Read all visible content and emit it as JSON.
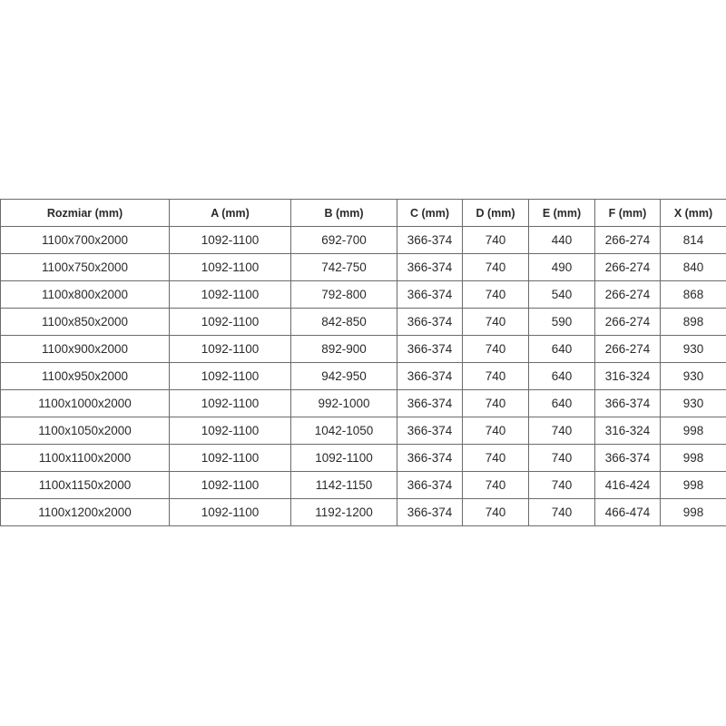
{
  "table": {
    "headers": [
      "Rozmiar (mm)",
      "A (mm)",
      "B (mm)",
      "C (mm)",
      "D (mm)",
      "E (mm)",
      "F (mm)",
      "X (mm)"
    ],
    "rows": [
      [
        "1100x700x2000",
        "1092-1100",
        "692-700",
        "366-374",
        "740",
        "440",
        "266-274",
        "814"
      ],
      [
        "1100x750x2000",
        "1092-1100",
        "742-750",
        "366-374",
        "740",
        "490",
        "266-274",
        "840"
      ],
      [
        "1100x800x2000",
        "1092-1100",
        "792-800",
        "366-374",
        "740",
        "540",
        "266-274",
        "868"
      ],
      [
        "1100x850x2000",
        "1092-1100",
        "842-850",
        "366-374",
        "740",
        "590",
        "266-274",
        "898"
      ],
      [
        "1100x900x2000",
        "1092-1100",
        "892-900",
        "366-374",
        "740",
        "640",
        "266-274",
        "930"
      ],
      [
        "1100x950x2000",
        "1092-1100",
        "942-950",
        "366-374",
        "740",
        "640",
        "316-324",
        "930"
      ],
      [
        "1100x1000x2000",
        "1092-1100",
        "992-1000",
        "366-374",
        "740",
        "640",
        "366-374",
        "930"
      ],
      [
        "1100x1050x2000",
        "1092-1100",
        "1042-1050",
        "366-374",
        "740",
        "740",
        "316-324",
        "998"
      ],
      [
        "1100x1100x2000",
        "1092-1100",
        "1092-1100",
        "366-374",
        "740",
        "740",
        "366-374",
        "998"
      ],
      [
        "1100x1150x2000",
        "1092-1100",
        "1142-1150",
        "366-374",
        "740",
        "740",
        "416-424",
        "998"
      ],
      [
        "1100x1200x2000",
        "1092-1100",
        "1192-1200",
        "366-374",
        "740",
        "740",
        "466-474",
        "998"
      ]
    ]
  }
}
